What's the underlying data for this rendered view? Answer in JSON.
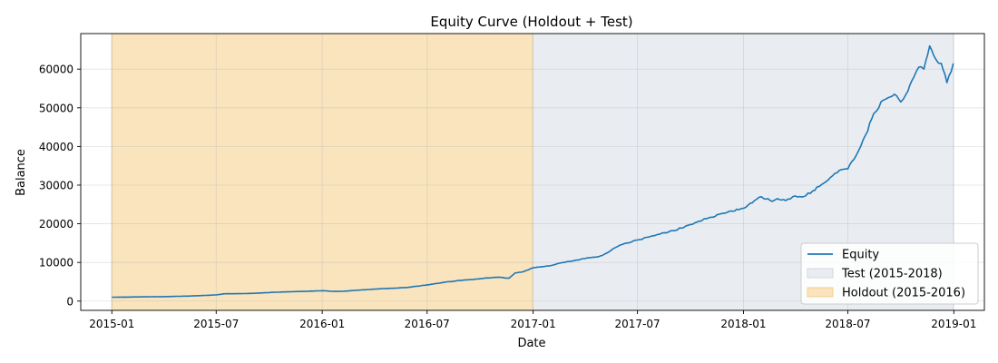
{
  "chart_data": {
    "type": "line",
    "title": "Equity Curve (Holdout + Test)",
    "xlabel": "Date",
    "ylabel": "Balance",
    "xlim": [
      "2014-11-08",
      "2019-02-23"
    ],
    "ylim": [
      -2400,
      69200
    ],
    "x_ticks": [
      "2015-01",
      "2015-07",
      "2016-01",
      "2016-07",
      "2017-01",
      "2017-07",
      "2018-01",
      "2018-07",
      "2019-01"
    ],
    "y_ticks": [
      0,
      10000,
      20000,
      30000,
      40000,
      50000,
      60000
    ],
    "grid": true,
    "legend_position": "lower-right",
    "legend": [
      {
        "label": "Equity",
        "kind": "line",
        "color": "#1f77b4"
      },
      {
        "label": "Test (2015-2018)",
        "kind": "patch",
        "color": "#e9edf2",
        "edge": "#c9d2dc"
      },
      {
        "label": "Holdout (2015-2016)",
        "kind": "patch",
        "color": "#f9e4bd",
        "edge": "#f2c87c"
      }
    ],
    "regions": [
      {
        "name": "Test (2015-2018)",
        "start": "2015-01-01",
        "end": "2018-12-31",
        "color": "#e9edf2"
      },
      {
        "name": "Holdout (2015-2016)",
        "start": "2015-01-01",
        "end": "2016-12-31",
        "color": "#f9e4bd"
      }
    ],
    "series": [
      {
        "name": "Equity",
        "color": "#1f77b4",
        "x": [
          "2015-01-01",
          "2015-02-01",
          "2015-03-01",
          "2015-04-01",
          "2015-05-01",
          "2015-06-01",
          "2015-07-01",
          "2015-07-15",
          "2015-08-01",
          "2015-09-01",
          "2015-10-01",
          "2015-11-01",
          "2015-12-01",
          "2016-01-01",
          "2016-01-20",
          "2016-02-01",
          "2016-03-01",
          "2016-04-01",
          "2016-05-01",
          "2016-06-01",
          "2016-07-01",
          "2016-08-01",
          "2016-09-01",
          "2016-10-01",
          "2016-11-01",
          "2016-11-20",
          "2016-12-01",
          "2016-12-15",
          "2017-01-01",
          "2017-02-01",
          "2017-03-01",
          "2017-04-01",
          "2017-04-25",
          "2017-05-01",
          "2017-06-01",
          "2017-07-01",
          "2017-08-01",
          "2017-09-01",
          "2017-10-01",
          "2017-11-01",
          "2017-12-01",
          "2018-01-01",
          "2018-01-20",
          "2018-02-01",
          "2018-02-20",
          "2018-03-01",
          "2018-03-15",
          "2018-04-01",
          "2018-04-15",
          "2018-05-01",
          "2018-05-20",
          "2018-06-01",
          "2018-06-20",
          "2018-07-01",
          "2018-07-15",
          "2018-08-01",
          "2018-08-15",
          "2018-09-01",
          "2018-09-20",
          "2018-10-01",
          "2018-10-10",
          "2018-10-20",
          "2018-11-01",
          "2018-11-10",
          "2018-11-20",
          "2018-12-01",
          "2018-12-10",
          "2018-12-20",
          "2018-12-31"
        ],
        "y": [
          1000,
          1050,
          1100,
          1150,
          1250,
          1400,
          1600,
          1900,
          1900,
          2000,
          2200,
          2400,
          2500,
          2700,
          2500,
          2500,
          2800,
          3100,
          3300,
          3600,
          4200,
          4900,
          5400,
          5800,
          6200,
          5900,
          7300,
          7600,
          8600,
          9200,
          10200,
          11000,
          11500,
          11800,
          14500,
          15800,
          17000,
          18200,
          19800,
          21500,
          22800,
          24000,
          26000,
          27000,
          25800,
          26500,
          26000,
          27200,
          27000,
          28500,
          30500,
          32000,
          34000,
          34200,
          37500,
          43000,
          48500,
          52000,
          53500,
          51500,
          53500,
          57000,
          60500,
          60000,
          66000,
          62500,
          61500,
          56500,
          61500
        ]
      }
    ]
  }
}
